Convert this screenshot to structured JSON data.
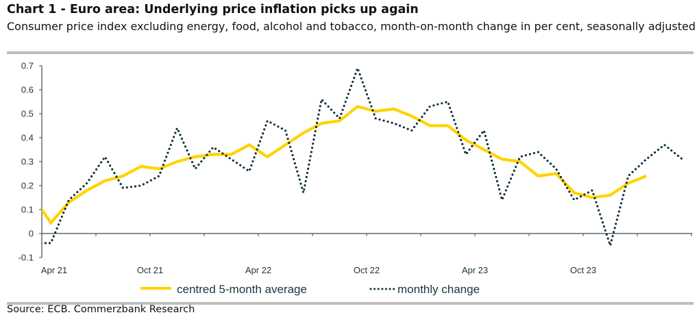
{
  "header": {
    "title": "Chart 1 - Euro area: Underlying price inflation picks up again",
    "subtitle": "Consumer price index excluding energy, food, alcohol and tobacco, month-on-month change in per cent, seasonally adjusted"
  },
  "footer": {
    "source": "Source: ECB. Commerzbank Research"
  },
  "colors": {
    "average_line": "#FFD300",
    "monthly_line": "#0E2E3B",
    "axis": "#3a4b55",
    "rule": "#bdbdbd"
  },
  "chart_data": {
    "type": "line",
    "title": "Chart 1 - Euro area: Underlying price inflation picks up again",
    "subtitle": "Consumer price index excluding energy, food, alcohol and tobacco, month-on-month change in per cent, seasonally adjusted",
    "xlabel": "",
    "ylabel": "",
    "ylim": [
      -0.1,
      0.7
    ],
    "yticks": [
      -0.1,
      0,
      0.1,
      0.2,
      0.3,
      0.4,
      0.5,
      0.6,
      0.7
    ],
    "ytick_labels": [
      "-0.1",
      "0",
      "0.1",
      "0.2",
      "0.3",
      "0.4",
      "0.5",
      "0.6",
      "0.7"
    ],
    "x_range": [
      "Apr 21",
      "Apr 24"
    ],
    "xtick_labels": [
      "Apr 21",
      "Oct 21",
      "Apr 22",
      "Oct 22",
      "Apr 23",
      "Oct 23"
    ],
    "grid": false,
    "legend_position": "bottom",
    "x": [
      "Mar 21",
      "Apr 21",
      "May 21",
      "Jun 21",
      "Jul 21",
      "Aug 21",
      "Sep 21",
      "Oct 21",
      "Nov 21",
      "Dec 21",
      "Jan 22",
      "Feb 22",
      "Mar 22",
      "Apr 22",
      "May 22",
      "Jun 22",
      "Jul 22",
      "Aug 22",
      "Sep 22",
      "Oct 22",
      "Nov 22",
      "Dec 22",
      "Jan 23",
      "Feb 23",
      "Mar 23",
      "Apr 23",
      "May 23",
      "Jun 23",
      "Jul 23",
      "Aug 23",
      "Sep 23",
      "Oct 23",
      "Nov 23",
      "Dec 23",
      "Jan 24",
      "Feb 24",
      "Mar 24"
    ],
    "series": [
      {
        "name": "centred 5-month average",
        "style": "solid",
        "values": [
          0.155,
          0.045,
          0.13,
          0.18,
          0.22,
          0.24,
          0.28,
          0.27,
          0.3,
          0.32,
          0.33,
          0.33,
          0.37,
          0.32,
          0.37,
          0.42,
          0.46,
          0.47,
          0.53,
          0.51,
          0.52,
          0.49,
          0.45,
          0.45,
          0.39,
          0.35,
          0.31,
          0.3,
          0.24,
          0.25,
          0.17,
          0.15,
          0.16,
          0.21,
          0.24,
          null,
          null
        ]
      },
      {
        "name": "monthly change",
        "style": "dotted",
        "values": [
          -0.04,
          -0.04,
          0.14,
          0.21,
          0.32,
          0.19,
          0.2,
          0.24,
          0.44,
          0.27,
          0.36,
          0.31,
          0.26,
          0.47,
          0.43,
          0.17,
          0.56,
          0.48,
          0.69,
          0.48,
          0.46,
          0.43,
          0.53,
          0.55,
          0.33,
          0.43,
          0.14,
          0.32,
          0.34,
          0.27,
          0.14,
          0.18,
          -0.05,
          0.24,
          0.31,
          0.37,
          0.31
        ]
      }
    ]
  }
}
